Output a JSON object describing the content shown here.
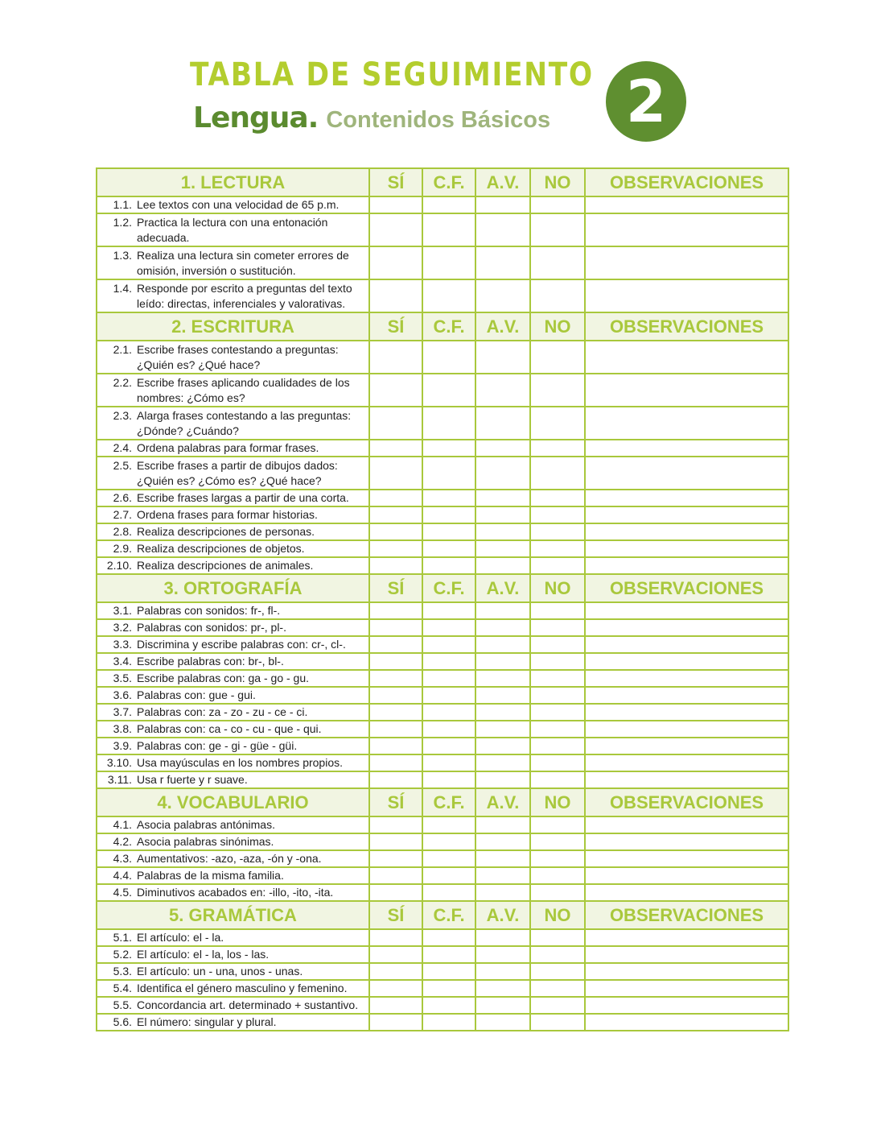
{
  "header": {
    "title": "TABLA DE SEGUIMIENTO",
    "subject": "Lengua.",
    "subtitle": "Contenidos Básicos",
    "number": "2"
  },
  "colors": {
    "border": "#a9c83c",
    "header_bg": "#f1f5e2",
    "title": "#b3cd2e",
    "subject": "#5b8b2f",
    "badge": "#5f8f30"
  },
  "columns": [
    "SÍ",
    "C.F.",
    "A.V.",
    "NO",
    "OBSERVACIONES"
  ],
  "sections": [
    {
      "title": "1. LECTURA",
      "items": [
        {
          "num": "1.1.",
          "text": "Lee textos con una velocidad de 65 p.m."
        },
        {
          "num": "1.2.",
          "text": "Practica la lectura con una entonación adecuada."
        },
        {
          "num": "1.3.",
          "text": "Realiza una lectura sin cometer errores de omisión, inversión o sustitución."
        },
        {
          "num": "1.4.",
          "text": "Responde por escrito a preguntas del texto leído: directas, inferenciales y valorativas."
        }
      ]
    },
    {
      "title": "2. ESCRITURA",
      "items": [
        {
          "num": "2.1.",
          "text": "Escribe frases contestando a preguntas: ¿Quién es? ¿Qué hace?"
        },
        {
          "num": "2.2.",
          "text": "Escribe frases aplicando cualidades de los nombres: ¿Cómo es?"
        },
        {
          "num": "2.3.",
          "text": "Alarga frases contestando a las preguntas: ¿Dónde? ¿Cuándo?"
        },
        {
          "num": "2.4.",
          "text": "Ordena palabras para formar frases."
        },
        {
          "num": "2.5.",
          "text": "Escribe frases a partir de dibujos dados: ¿Quién es? ¿Cómo es? ¿Qué hace?"
        },
        {
          "num": "2.6.",
          "text": "Escribe frases largas a partir de una corta."
        },
        {
          "num": "2.7.",
          "text": "Ordena frases para formar historias."
        },
        {
          "num": "2.8.",
          "text": "Realiza descripciones de personas."
        },
        {
          "num": "2.9.",
          "text": "Realiza descripciones de objetos."
        },
        {
          "num": "2.10.",
          "text": "Realiza descripciones de animales."
        }
      ]
    },
    {
      "title": "3. ORTOGRAFÍA",
      "items": [
        {
          "num": "3.1.",
          "text": "Palabras con sonidos: fr-, fl-."
        },
        {
          "num": "3.2.",
          "text": "Palabras con sonidos: pr-, pl-."
        },
        {
          "num": "3.3.",
          "text": "Discrimina y escribe palabras con: cr-, cl-."
        },
        {
          "num": "3.4.",
          "text": "Escribe palabras con: br-, bl-."
        },
        {
          "num": "3.5.",
          "text": "Escribe palabras con: ga - go - gu."
        },
        {
          "num": "3.6.",
          "text": "Palabras con: gue - gui."
        },
        {
          "num": "3.7.",
          "text": "Palabras con: za - zo - zu - ce - ci."
        },
        {
          "num": "3.8.",
          "text": "Palabras con: ca - co - cu - que - qui."
        },
        {
          "num": "3.9.",
          "text": "Palabras con: ge - gi - güe - güi."
        },
        {
          "num": "3.10.",
          "text": "Usa mayúsculas en los nombres propios."
        },
        {
          "num": "3.11.",
          "text": "Usa r fuerte y r suave."
        }
      ]
    },
    {
      "title": "4. VOCABULARIO",
      "items": [
        {
          "num": "4.1.",
          "text": "Asocia palabras antónimas."
        },
        {
          "num": "4.2.",
          "text": "Asocia palabras sinónimas."
        },
        {
          "num": "4.3.",
          "text": "Aumentativos: -azo, -aza, -ón y -ona."
        },
        {
          "num": "4.4.",
          "text": "Palabras de la misma familia."
        },
        {
          "num": "4.5.",
          "text": "Diminutivos acabados en: -illo, -ito, -ita."
        }
      ]
    },
    {
      "title": "5. GRAMÁTICA",
      "items": [
        {
          "num": "5.1.",
          "text": "El artículo: el - la."
        },
        {
          "num": "5.2.",
          "text": "El artículo: el - la, los - las."
        },
        {
          "num": "5.3.",
          "text": "El artículo: un - una, unos - unas."
        },
        {
          "num": "5.4.",
          "text": "Identifica el género masculino y femenino."
        },
        {
          "num": "5.5.",
          "text": "Concordancia art. determinado + sustantivo."
        },
        {
          "num": "5.6.",
          "text": "El número: singular y plural."
        }
      ]
    }
  ]
}
